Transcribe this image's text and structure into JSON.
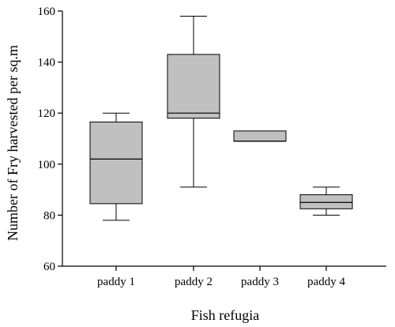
{
  "chart_data": {
    "type": "box",
    "title": "",
    "xlabel": "Fish refugia",
    "ylabel": "Number of Fry harvested per sq.m",
    "ylim": [
      60,
      160
    ],
    "yticks": [
      60,
      80,
      100,
      120,
      140,
      160
    ],
    "categories": [
      "paddy 1",
      "paddy 2",
      "paddy 3",
      "paddy 4"
    ],
    "boxes": [
      {
        "category": "paddy 1",
        "min": 78,
        "q1": 84.5,
        "median": 102,
        "q3": 116.5,
        "max": 120
      },
      {
        "category": "paddy 2",
        "min": 91,
        "q1": 118,
        "median": 120,
        "q3": 143,
        "max": 158
      },
      {
        "category": "paddy 3",
        "min": 109,
        "q1": 109,
        "median": 109,
        "q3": 113,
        "max": 113
      },
      {
        "category": "paddy 4",
        "min": 80,
        "q1": 82.5,
        "median": 85,
        "q3": 88,
        "max": 91
      }
    ],
    "box_color": "#c0c0c0",
    "grid": false,
    "legend": "none"
  }
}
